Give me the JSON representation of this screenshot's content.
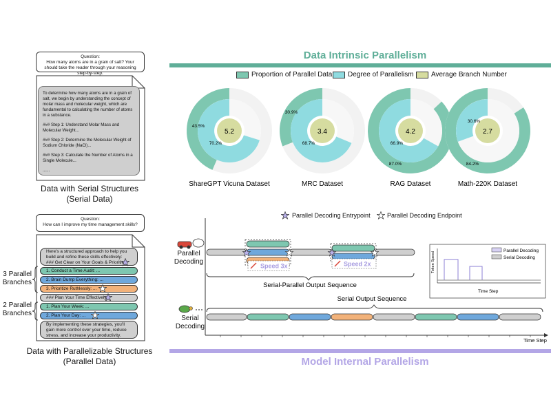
{
  "serial_panel": {
    "question_label": "Question:",
    "question_text": "How many atoms are in a grain of salt? Your should take the reader through your reasoning step-by-step.",
    "answer_paragraphs": [
      "To determine how many atoms are in a grain of salt, we begin by understanding the concept of molar mass and molecular weight, which are fundamental to calculating the number of atoms in a substance.",
      "### Step 1: Understand Molar Mass and Molecular Weight...",
      "### Step 2: Determine the Molecular Weight of Sodium Chloride (NaCl)...",
      "### Step 3: Calculate the Number of Atoms in a Single Molecule...",
      "......"
    ],
    "caption_line1": "Data with Serial Structures",
    "caption_line2": "(Serial Data)"
  },
  "parallel_panel": {
    "question_label": "Question:",
    "question_text": "How can I improve my time management skills?",
    "intro": "Here's a structured approach to help you build and refine these skills effectively:",
    "goal": "### Get Clear on Your Goals & Priorities",
    "items": [
      {
        "text": "1. Conduct a Time Audit: ...",
        "color": "#7ec7b0"
      },
      {
        "text": "2. Brain Dump Everything: ...",
        "color": "#6fa8dc"
      },
      {
        "text": "3. Prioritize Ruthlessly: ...",
        "color": "#f2b27a"
      }
    ],
    "plan_heading": "### Plan Your Time Effectively",
    "items2": [
      {
        "text": "1. Plan Your Week: ...",
        "color": "#7ec7b0"
      },
      {
        "text": "2. Plan Your Day: ...",
        "color": "#6fa8dc"
      }
    ],
    "closing": "By implementing these strategies, you'll gain more control over your time, reduce stress, and increase your productivity.",
    "branch_label_1a": "3 Parallel",
    "branch_label_1b": "Branches",
    "branch_label_2a": "2 Parallel",
    "branch_label_2b": "Branches",
    "caption_line1": "Data with Parallelizable Structures",
    "caption_line2": "(Parallel Data)"
  },
  "top_section": {
    "title": "Data Intrinsic Parallelism",
    "title_color": "#5fae98",
    "legend": [
      {
        "label": "Proportion of Parallel Data",
        "color": "#7ec7b0"
      },
      {
        "label": "Degree of Parallelism",
        "color": "#8fdbe0"
      },
      {
        "label": "Average Branch Number",
        "color": "#d6dca0"
      }
    ],
    "datasets": [
      {
        "name": "ShareGPT Vicuna Dataset",
        "outer": 43.5,
        "inner": 70.2,
        "center": "5.2",
        "outer_label": "43.5%",
        "inner_label": "70.2%"
      },
      {
        "name": "MRC Dataset",
        "outer": 30.9,
        "inner": 68.7,
        "center": "3.4",
        "outer_label": "30.9%",
        "inner_label": "68.7%"
      },
      {
        "name": "RAG Dataset",
        "outer": 87.0,
        "inner": 66.9,
        "center": "4.2",
        "outer_label": "87.0%",
        "inner_label": "66.9%"
      },
      {
        "name": "Math-220K Dataset",
        "outer": 84.2,
        "inner": 30.6,
        "center": "2.7",
        "outer_label": "84.2%",
        "inner_label": "30.6%"
      }
    ]
  },
  "bottom_section": {
    "title": "Model Internal Parallelism",
    "title_color": "#b3a6e6",
    "entry_legend": "Parallel Decoding Entrypoint",
    "end_legend": "Parallel Decoding Endpoint",
    "parallel_label_1": "Parallel",
    "parallel_label_2": "Decoding",
    "serial_label_1": "Serial",
    "serial_label_2": "Decoding",
    "speed_a": "Speed 3x",
    "speed_b": "Speed 2x",
    "serial_parallel_seq": "Serial-Parallel Output Sequence",
    "serial_seq": "Serial Output Sequence",
    "time_step": "Time Step",
    "inset": {
      "ylabel": "Token Speed",
      "xlabel": "Time Step",
      "legend_parallel": "Parallel Decoding",
      "legend_serial": "Serial Decoding"
    }
  }
}
